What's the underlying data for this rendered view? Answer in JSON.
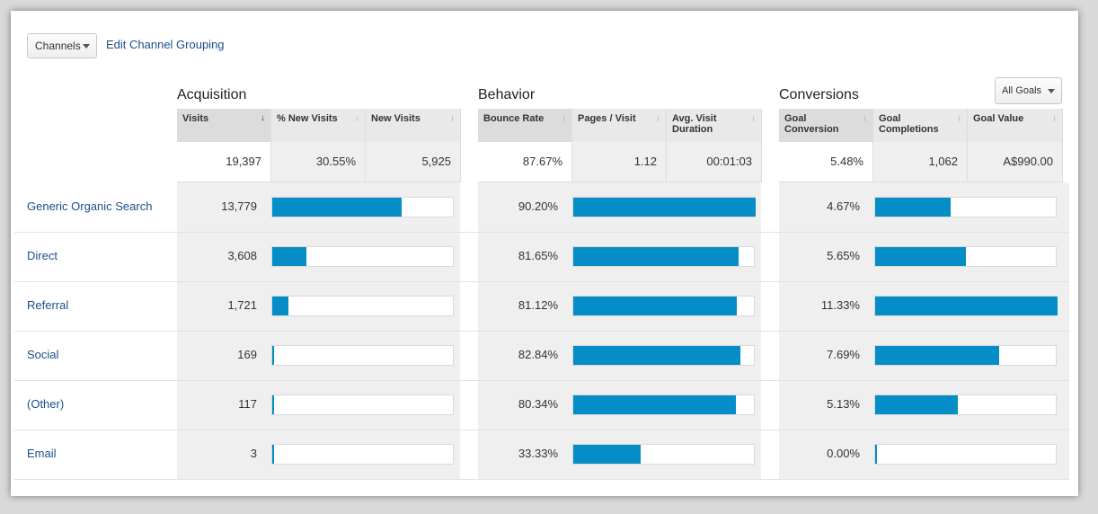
{
  "controls": {
    "channels_label": "Channels",
    "edit_link": "Edit Channel Grouping",
    "goals_label": "All Goals"
  },
  "sections": {
    "acquisition": "Acquisition",
    "behavior": "Behavior",
    "conversions": "Conversions"
  },
  "columns": {
    "visits": "Visits",
    "pct_new_visits": "% New Visits",
    "new_visits": "New Visits",
    "bounce_rate": "Bounce Rate",
    "pages_visit": "Pages / Visit",
    "avg_visit_duration": "Avg. Visit Duration",
    "goal_conversion": "Goal Conversion",
    "goal_completions": "Goal Completions",
    "goal_value": "Goal Value"
  },
  "totals": {
    "visits": "19,397",
    "pct_new_visits": "30.55%",
    "new_visits": "5,925",
    "bounce_rate": "87.67%",
    "pages_visit": "1.12",
    "avg_visit_duration": "00:01:03",
    "goal_conversion": "5.48%",
    "goal_completions": "1,062",
    "goal_value": "A$990.00"
  },
  "rows": [
    {
      "channel": "Generic Organic Search",
      "visits": "13,779",
      "visits_share": 0.71,
      "bounce_rate": "90.20%",
      "bounce_share": 1.0,
      "goal_conversion": "4.67%",
      "conv_share": 0.412
    },
    {
      "channel": "Direct",
      "visits": "3,608",
      "visits_share": 0.186,
      "bounce_rate": "81.65%",
      "bounce_share": 0.905,
      "goal_conversion": "5.65%",
      "conv_share": 0.499
    },
    {
      "channel": "Referral",
      "visits": "1,721",
      "visits_share": 0.089,
      "bounce_rate": "81.12%",
      "bounce_share": 0.899,
      "goal_conversion": "11.33%",
      "conv_share": 1.0
    },
    {
      "channel": "Social",
      "visits": "169",
      "visits_share": 0.009,
      "bounce_rate": "82.84%",
      "bounce_share": 0.918,
      "goal_conversion": "7.69%",
      "conv_share": 0.679
    },
    {
      "channel": "(Other)",
      "visits": "117",
      "visits_share": 0.006,
      "bounce_rate": "80.34%",
      "bounce_share": 0.891,
      "goal_conversion": "5.13%",
      "conv_share": 0.453
    },
    {
      "channel": "Email",
      "visits": "3",
      "visits_share": 0.0,
      "bounce_rate": "33.33%",
      "bounce_share": 0.37,
      "goal_conversion": "0.00%",
      "conv_share": 0.0
    }
  ],
  "colors": {
    "bar": "#058dc7",
    "link": "#1a4e8a"
  }
}
